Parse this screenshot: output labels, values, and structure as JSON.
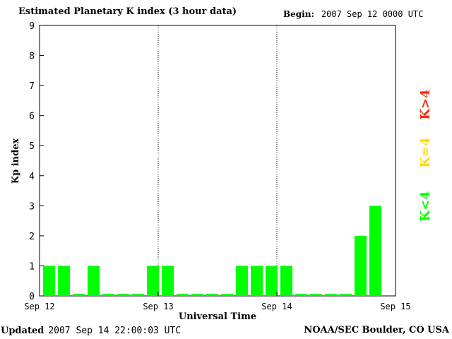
{
  "header": {
    "title": "Estimated Planetary K index (3 hour data)",
    "begin_label": "Begin:",
    "begin_value": "2007 Sep 12 0000 UTC"
  },
  "footer": {
    "updated_label": "Updated",
    "updated_value": "2007 Sep 14 22:00:03 UTC",
    "credit": "NOAA/SEC Boulder, CO USA"
  },
  "legend": [
    {
      "label": "K>4",
      "color": "#ff2a00"
    },
    {
      "label": "K=4",
      "color": "#ffd700"
    },
    {
      "label": "K<4",
      "color": "#00ff00"
    }
  ],
  "chart_data": {
    "type": "bar",
    "title": "Estimated Planetary K index (3 hour data)",
    "xlabel": "Universal Time",
    "ylabel": "Kp index",
    "ylim": [
      0,
      9
    ],
    "yticks": [
      0,
      1,
      2,
      3,
      4,
      5,
      6,
      7,
      8,
      9
    ],
    "xticks": [
      "Sep 12",
      "Sep 13",
      "Sep 14",
      "Sep 15"
    ],
    "interval_hours": 3,
    "bar_color": "#00ff00",
    "values": [
      1,
      1,
      0,
      1,
      0,
      0,
      0,
      1,
      1,
      0,
      0,
      0,
      0,
      1,
      1,
      1,
      1,
      0,
      0,
      0,
      0,
      2,
      3
    ],
    "day_separators": "dotted"
  }
}
